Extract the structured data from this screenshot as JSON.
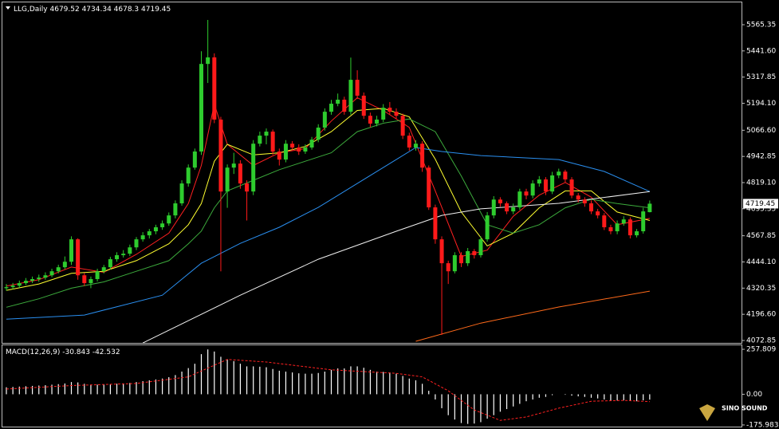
{
  "chart_data": [
    {
      "type": "candlestick",
      "symbol": "LLG,Daily",
      "up_color": "#2ecc2e",
      "down_color": "#ff1a1a",
      "ylim": [
        4061.5,
        5682.2
      ],
      "yticks": [
        5565.35,
        {
          "value": 5441.6,
          "label": "5441.60"
        },
        5317.85,
        {
          "value": 5194.1,
          "label": "5194.10"
        },
        {
          "value": 5066.6,
          "label": "5066.60"
        },
        4942.85,
        {
          "value": 4819.1,
          "label": "4819.10"
        },
        4695.35,
        4567.85,
        {
          "value": 4444.1,
          "label": "4444.10"
        },
        4320.35,
        {
          "value": 4196.6,
          "label": "4196.60"
        },
        4072.85
      ],
      "open": [
        4320,
        4325,
        4332,
        4344,
        4355,
        4363,
        4370,
        4381,
        4400,
        4419,
        4445,
        4551,
        4381,
        4344,
        4363,
        4400,
        4419,
        4457,
        4476,
        4483,
        4513,
        4551,
        4570,
        4589,
        4608,
        4626,
        4664,
        4721,
        4815,
        4890,
        4966,
        5380,
        5411,
        5117,
        4777,
        4890,
        4909,
        4815,
        4777,
        5003,
        5041,
        5060,
        4966,
        4928,
        5003,
        4985,
        4966,
        4985,
        5022,
        5079,
        5154,
        5192,
        5211,
        5154,
        5305,
        5230,
        5135,
        5098,
        5117,
        5173,
        5154,
        5135,
        5041,
        4985,
        5003,
        4890,
        4702,
        4551,
        4438,
        4400,
        4476,
        4438,
        4495,
        4476,
        4551,
        4664,
        4739,
        4721,
        4683,
        4702,
        4777,
        4758,
        4815,
        4834,
        4777,
        4853,
        4871,
        4834,
        4758,
        4739,
        4721,
        4683,
        4664,
        4608,
        4589,
        4626,
        4645,
        4570,
        4589,
        4679.52
      ],
      "high": [
        4340,
        4345,
        4356,
        4368,
        4375,
        4384,
        4395,
        4412,
        4431,
        4470,
        4565,
        4556,
        4392,
        4375,
        4412,
        4430,
        4468,
        4490,
        4500,
        4526,
        4562,
        4585,
        4600,
        4620,
        4640,
        4678,
        4735,
        4830,
        4905,
        4980,
        5440,
        5588,
        5430,
        5130,
        4905,
        4960,
        4925,
        4830,
        5020,
        5060,
        5075,
        5070,
        4980,
        5020,
        5015,
        5000,
        5000,
        5035,
        5095,
        5170,
        5210,
        5240,
        5225,
        5410,
        5350,
        5245,
        5150,
        5135,
        5190,
        5200,
        5170,
        5145,
        5055,
        5020,
        5015,
        4900,
        4715,
        4565,
        4450,
        4490,
        4490,
        4510,
        4505,
        4565,
        4680,
        4755,
        4750,
        4730,
        4720,
        4790,
        4790,
        4830,
        4850,
        4845,
        4870,
        4885,
        4880,
        4845,
        4770,
        4750,
        4735,
        4695,
        4675,
        4620,
        4640,
        4660,
        4655,
        4600,
        4700,
        4734.34
      ],
      "low": [
        4308,
        4315,
        4322,
        4335,
        4344,
        4350,
        4360,
        4372,
        4390,
        4410,
        4430,
        4360,
        4330,
        4320,
        4352,
        4390,
        4408,
        4445,
        4465,
        4472,
        4500,
        4540,
        4555,
        4575,
        4596,
        4615,
        4650,
        4710,
        4800,
        4880,
        4950,
        5290,
        5100,
        4400,
        4700,
        4860,
        4790,
        4640,
        4760,
        4990,
        5000,
        4950,
        4900,
        4915,
        4970,
        4950,
        4955,
        4975,
        5010,
        5065,
        5140,
        5180,
        5140,
        5140,
        5215,
        5120,
        5080,
        5085,
        5105,
        5140,
        5120,
        5025,
        4970,
        4970,
        4870,
        4690,
        4530,
        4099,
        4340,
        4390,
        4420,
        4425,
        4460,
        4465,
        4540,
        4650,
        4705,
        4670,
        4670,
        4690,
        4740,
        4745,
        4800,
        4760,
        4765,
        4840,
        4820,
        4745,
        4725,
        4705,
        4670,
        4650,
        4595,
        4575,
        4575,
        4615,
        4555,
        4560,
        4578,
        4678.3
      ],
      "close": [
        4325,
        4332,
        4344,
        4355,
        4363,
        4370,
        4381,
        4400,
        4419,
        4445,
        4551,
        4381,
        4344,
        4363,
        4400,
        4419,
        4457,
        4476,
        4483,
        4513,
        4551,
        4570,
        4589,
        4608,
        4626,
        4664,
        4721,
        4815,
        4890,
        4966,
        5380,
        5411,
        5117,
        4777,
        4890,
        4909,
        4815,
        4777,
        5003,
        5041,
        5060,
        4966,
        4928,
        5003,
        4985,
        4966,
        4985,
        5022,
        5079,
        5154,
        5192,
        5211,
        5154,
        5305,
        5230,
        5135,
        5098,
        5117,
        5173,
        5154,
        5135,
        5041,
        4985,
        5003,
        4890,
        4702,
        4551,
        4438,
        4400,
        4476,
        4438,
        4495,
        4476,
        4551,
        4664,
        4739,
        4721,
        4683,
        4702,
        4777,
        4758,
        4815,
        4834,
        4777,
        4853,
        4871,
        4834,
        4758,
        4739,
        4721,
        4683,
        4664,
        4608,
        4589,
        4626,
        4645,
        4570,
        4589,
        4683,
        4719.45
      ],
      "series": [
        {
          "color": "#ff2020",
          "x": [
            0,
            5,
            10,
            15,
            20,
            25,
            28,
            30,
            32,
            34,
            38,
            42,
            46,
            50,
            54,
            58,
            62,
            66,
            70,
            74,
            78,
            82,
            86,
            90,
            94,
            99
          ],
          "values": [
            4330,
            4360,
            4420,
            4395,
            4480,
            4580,
            4720,
            4900,
            5190,
            5000,
            4900,
            4960,
            4980,
            5110,
            5220,
            5160,
            5080,
            4780,
            4470,
            4500,
            4660,
            4760,
            4820,
            4750,
            4620,
            4650
          ]
        },
        {
          "color": "#ffff30",
          "x": [
            0,
            5,
            10,
            15,
            20,
            25,
            28,
            30,
            32,
            34,
            38,
            42,
            46,
            50,
            54,
            58,
            62,
            66,
            70,
            74,
            78,
            82,
            86,
            90,
            94,
            99
          ],
          "values": [
            4310,
            4340,
            4390,
            4400,
            4450,
            4530,
            4620,
            4720,
            4920,
            5000,
            4950,
            4960,
            4990,
            5060,
            5160,
            5170,
            5130,
            4930,
            4680,
            4520,
            4580,
            4700,
            4780,
            4780,
            4680,
            4640
          ]
        },
        {
          "color": "#3caa3c",
          "x": [
            0,
            5,
            10,
            15,
            20,
            25,
            28,
            30,
            32,
            34,
            38,
            42,
            46,
            50,
            54,
            58,
            62,
            66,
            70,
            74,
            78,
            82,
            86,
            90,
            94,
            99
          ],
          "values": [
            4230,
            4270,
            4320,
            4350,
            4400,
            4450,
            4530,
            4590,
            4700,
            4780,
            4830,
            4880,
            4920,
            4960,
            5060,
            5100,
            5120,
            5060,
            4850,
            4620,
            4580,
            4620,
            4700,
            4740,
            4720,
            4700
          ]
        },
        {
          "color": "#2a8ff0",
          "x": [
            0,
            12,
            24,
            30,
            36,
            42,
            48,
            54,
            60,
            63,
            67,
            73,
            85,
            92,
            99
          ],
          "values": [
            4174,
            4193,
            4287,
            4438,
            4532,
            4608,
            4702,
            4815,
            4928,
            4985,
            4966,
            4947,
            4928,
            4872,
            4777
          ]
        },
        {
          "color": "#f0f0f0",
          "x": [
            21,
            36,
            48,
            60,
            67,
            73,
            85,
            99
          ],
          "values": [
            4061,
            4287,
            4457,
            4589,
            4664,
            4695,
            4721,
            4777
          ]
        },
        {
          "color": "#ff6a1a",
          "x": [
            63,
            73,
            85,
            99
          ],
          "values": [
            4069,
            4155,
            4231,
            4306
          ]
        }
      ]
    },
    {
      "type": "macd",
      "title": "MACD(12,26,9)",
      "color": "#ffffff",
      "signal_color": "#ff2020",
      "ylim": [
        -190,
        285.4
      ],
      "yticks": [
        257.809,
        {
          "value": 0,
          "label": "0.00"
        },
        -175.983
      ],
      "values": [
        40,
        42,
        44,
        46,
        48,
        50,
        52,
        55,
        58,
        62,
        70,
        68,
        60,
        55,
        55,
        56,
        58,
        60,
        62,
        65,
        70,
        75,
        80,
        85,
        90,
        98,
        110,
        130,
        150,
        175,
        230,
        257,
        245,
        215,
        200,
        190,
        175,
        160,
        160,
        158,
        155,
        145,
        135,
        130,
        125,
        120,
        118,
        118,
        122,
        130,
        140,
        148,
        148,
        160,
        160,
        152,
        140,
        130,
        128,
        125,
        118,
        105,
        90,
        80,
        60,
        20,
        -30,
        -80,
        -120,
        -145,
        -165,
        -170,
        -168,
        -160,
        -140,
        -120,
        -100,
        -85,
        -70,
        -55,
        -40,
        -30,
        -20,
        -15,
        -5,
        0,
        -3,
        -8,
        -12,
        -15,
        -20,
        -24,
        -30,
        -35,
        -36,
        -35,
        -38,
        -40,
        -35,
        -30.843
      ],
      "signal": {
        "x": [
          0,
          10,
          20,
          28,
          34,
          40,
          50,
          60,
          64,
          68,
          72,
          76,
          80,
          85,
          90,
          95,
          99
        ],
        "values": [
          30,
          50,
          62,
          100,
          200,
          185,
          140,
          120,
          100,
          20,
          -90,
          -150,
          -130,
          -80,
          -40,
          -35,
          -42.532
        ]
      }
    }
  ],
  "watermark": "SINO SOUND"
}
